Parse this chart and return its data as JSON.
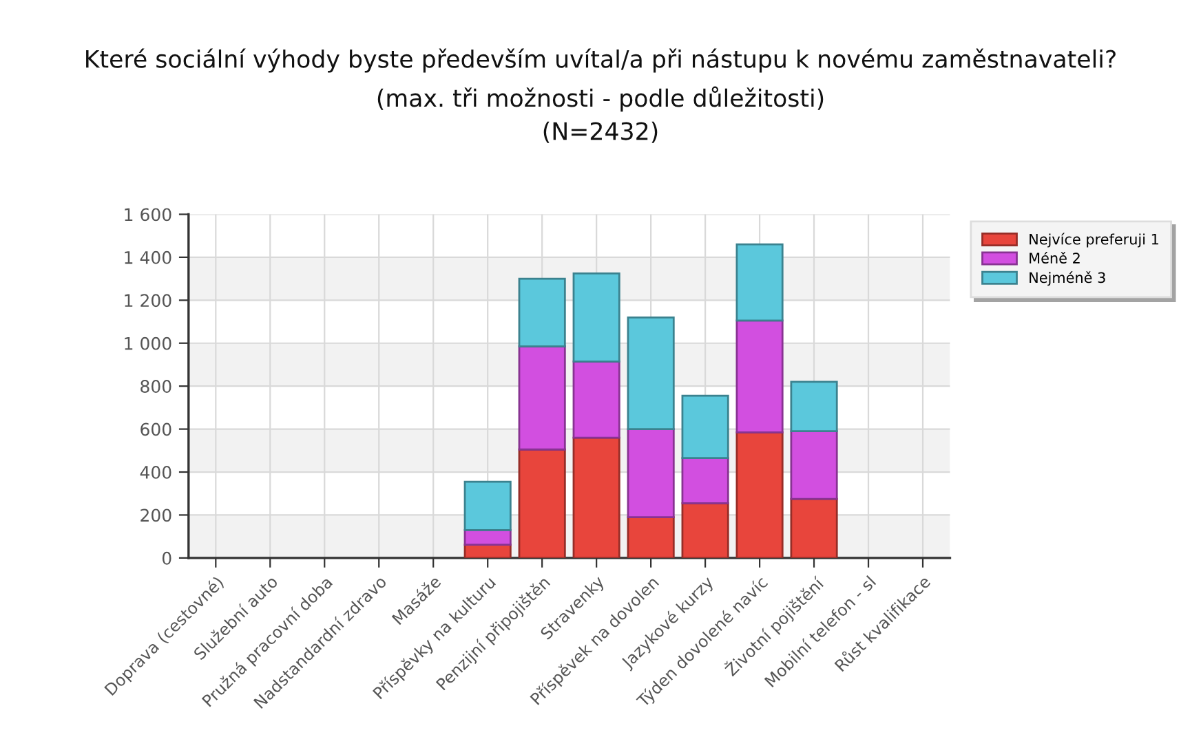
{
  "chart_data": {
    "type": "bar",
    "stacked": true,
    "title": "Které sociální výhody byste především uvítal/a při nástupu k novému zaměstnavateli?",
    "subtitle": "(max. tři možnosti - podle důležitosti)\n(N=2432)",
    "categories": [
      "Doprava (cestovné)",
      "Služební auto",
      "Pružná pracovní doba",
      "Nadstandardní zdravo",
      "Masáže",
      "Příspěvky na kulturu",
      "Penzijní připojištěn",
      "Stravenky",
      "Příspěvek na dovolen",
      "Jazykové kurzy",
      "Týden dovolené navíc",
      "Životní pojištění",
      "Mobilní telefon - sl",
      "Růst kvalifikace"
    ],
    "series": [
      {
        "name": "Nejvíce preferuji 1",
        "color": "#e8453c",
        "values": [
          null,
          null,
          null,
          null,
          null,
          62,
          505,
          560,
          190,
          255,
          585,
          275,
          null,
          null
        ]
      },
      {
        "name": "Méně 2",
        "color": "#d24fe0",
        "values": [
          null,
          null,
          null,
          null,
          null,
          68,
          480,
          355,
          410,
          210,
          520,
          315,
          null,
          null
        ]
      },
      {
        "name": "Nejméně 3",
        "color": "#5bc8dc",
        "values": [
          null,
          null,
          null,
          null,
          null,
          225,
          315,
          410,
          520,
          290,
          355,
          230,
          null,
          null
        ]
      }
    ],
    "ylim": [
      0,
      1600
    ],
    "yticks": [
      0,
      200,
      400,
      600,
      800,
      {
        "value": 1000,
        "label": "1 000"
      },
      {
        "value": 1200,
        "label": "1 200"
      },
      {
        "value": 1400,
        "label": "1 400"
      },
      {
        "value": 1600,
        "label": "1 600"
      }
    ],
    "bands": [
      {
        "axis": "y",
        "from": 0,
        "to": 200,
        "color": "#f2f2f2"
      },
      {
        "axis": "y",
        "from": 400,
        "to": 600,
        "color": "#f2f2f2"
      },
      {
        "axis": "y",
        "from": 800,
        "to": 1000,
        "color": "#f2f2f2"
      },
      {
        "axis": "y",
        "from": 1200,
        "to": 1400,
        "color": "#f2f2f2"
      }
    ],
    "grid": true,
    "legend": "top right"
  }
}
